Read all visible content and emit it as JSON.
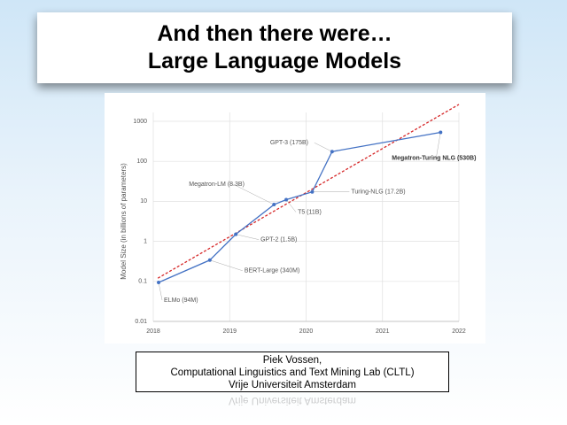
{
  "slide": {
    "title": [
      "And then there were…",
      "Large Language Models"
    ],
    "credit": [
      "Piek Vossen,",
      "Computational Linguistics and Text Mining Lab (CLTL)",
      "Vrije Universiteit Amsterdam"
    ]
  },
  "chart_data": {
    "type": "line",
    "y_label": "Model Size (in billions of parameters)",
    "log_y": true,
    "grid": true,
    "x": [
      2018.07,
      2018.74,
      2019.08,
      2019.58,
      2019.74,
      2020.08,
      2020.34,
      2021.76
    ],
    "values": [
      0.094,
      0.34,
      1.5,
      8.3,
      11,
      17.2,
      175,
      530
    ],
    "labels": [
      "ELMo (94M)",
      "BERT-Large (340M)",
      "GPT-2 (1.5B)",
      "Megatron-LM (8.3B)",
      "T5 (11B)",
      "Turing-NLG (17.2B)",
      "GPT-3 (175B)",
      "Megatron-Turing NLG (530B)"
    ],
    "color": "#4472c4",
    "trend": {
      "x": [
        2018.06,
        2022
      ],
      "values": [
        0.12,
        2640
      ],
      "color": "#d62728"
    },
    "xlim": [
      2018,
      2022
    ],
    "xticks": [
      2018,
      2019,
      2020,
      2021,
      2022
    ],
    "ylim": [
      0.01,
      1000
    ],
    "yticks": [
      0.01,
      0.1,
      1,
      10,
      100,
      1000
    ]
  }
}
